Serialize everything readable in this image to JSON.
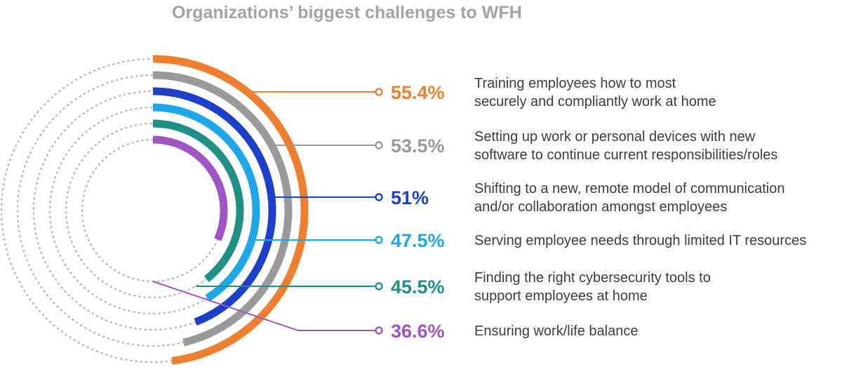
{
  "chart_data": {
    "type": "radial-bar",
    "title": "Organizations’ biggest challenges to WFH",
    "unit": "%",
    "colors": {
      "track": "#bdbdbd",
      "text": "#3d3d3d",
      "title": "#a3a3a3"
    },
    "series": [
      {
        "value": 55.4,
        "value_label": "55.4%",
        "color": "#ef7f2e",
        "label_lines": [
          "Training employees how to most",
          "securely and compliantly work at home"
        ]
      },
      {
        "value": 53.5,
        "value_label": "53.5%",
        "color": "#9a9a9c",
        "label_lines": [
          "Setting up work or personal devices with new",
          "software to continue current responsibilities/roles"
        ]
      },
      {
        "value": 51,
        "value_label": "51%",
        "color": "#1d3fcc",
        "label_lines": [
          "Shifting to a new, remote model of communication",
          "and/or collaboration amongst employees"
        ]
      },
      {
        "value": 47.5,
        "value_label": "47.5%",
        "color": "#1ea7e8",
        "label_lines": [
          "Serving employee needs through limited IT resources"
        ]
      },
      {
        "value": 45.5,
        "value_label": "45.5%",
        "color": "#1e9084",
        "label_lines": [
          "Finding the right cybersecurity tools to",
          "support employees at home"
        ]
      },
      {
        "value": 36.6,
        "value_label": "36.6%",
        "color": "#a055c7",
        "label_lines": [
          "Ensuring work/life balance"
        ]
      }
    ]
  }
}
